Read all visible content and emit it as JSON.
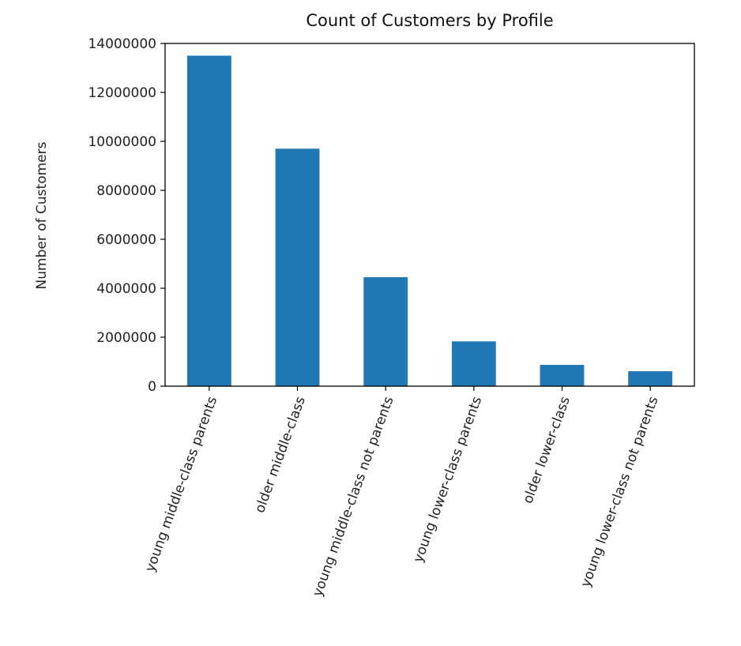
{
  "chart_data": {
    "type": "bar",
    "title": "Count of Customers by Profile",
    "xlabel": "",
    "ylabel": "Number of Customers",
    "categories": [
      "young middle-class parents",
      "older middle-class",
      "young middle-class not parents",
      "young lower-class parents",
      "older lower-class",
      "young lower-class not parents"
    ],
    "values": [
      13500000,
      9700000,
      4450000,
      1830000,
      870000,
      610000
    ],
    "ylim": [
      0,
      14000000
    ],
    "yticks": [
      0,
      2000000,
      4000000,
      6000000,
      8000000,
      10000000,
      12000000,
      14000000
    ],
    "ytick_labels": [
      "0",
      "2000000",
      "4000000",
      "6000000",
      "8000000",
      "10000000",
      "12000000",
      "14000000"
    ],
    "bar_color": "#1f77b4",
    "grid": false,
    "legend": "none",
    "xtick_rotation_deg": 70
  }
}
